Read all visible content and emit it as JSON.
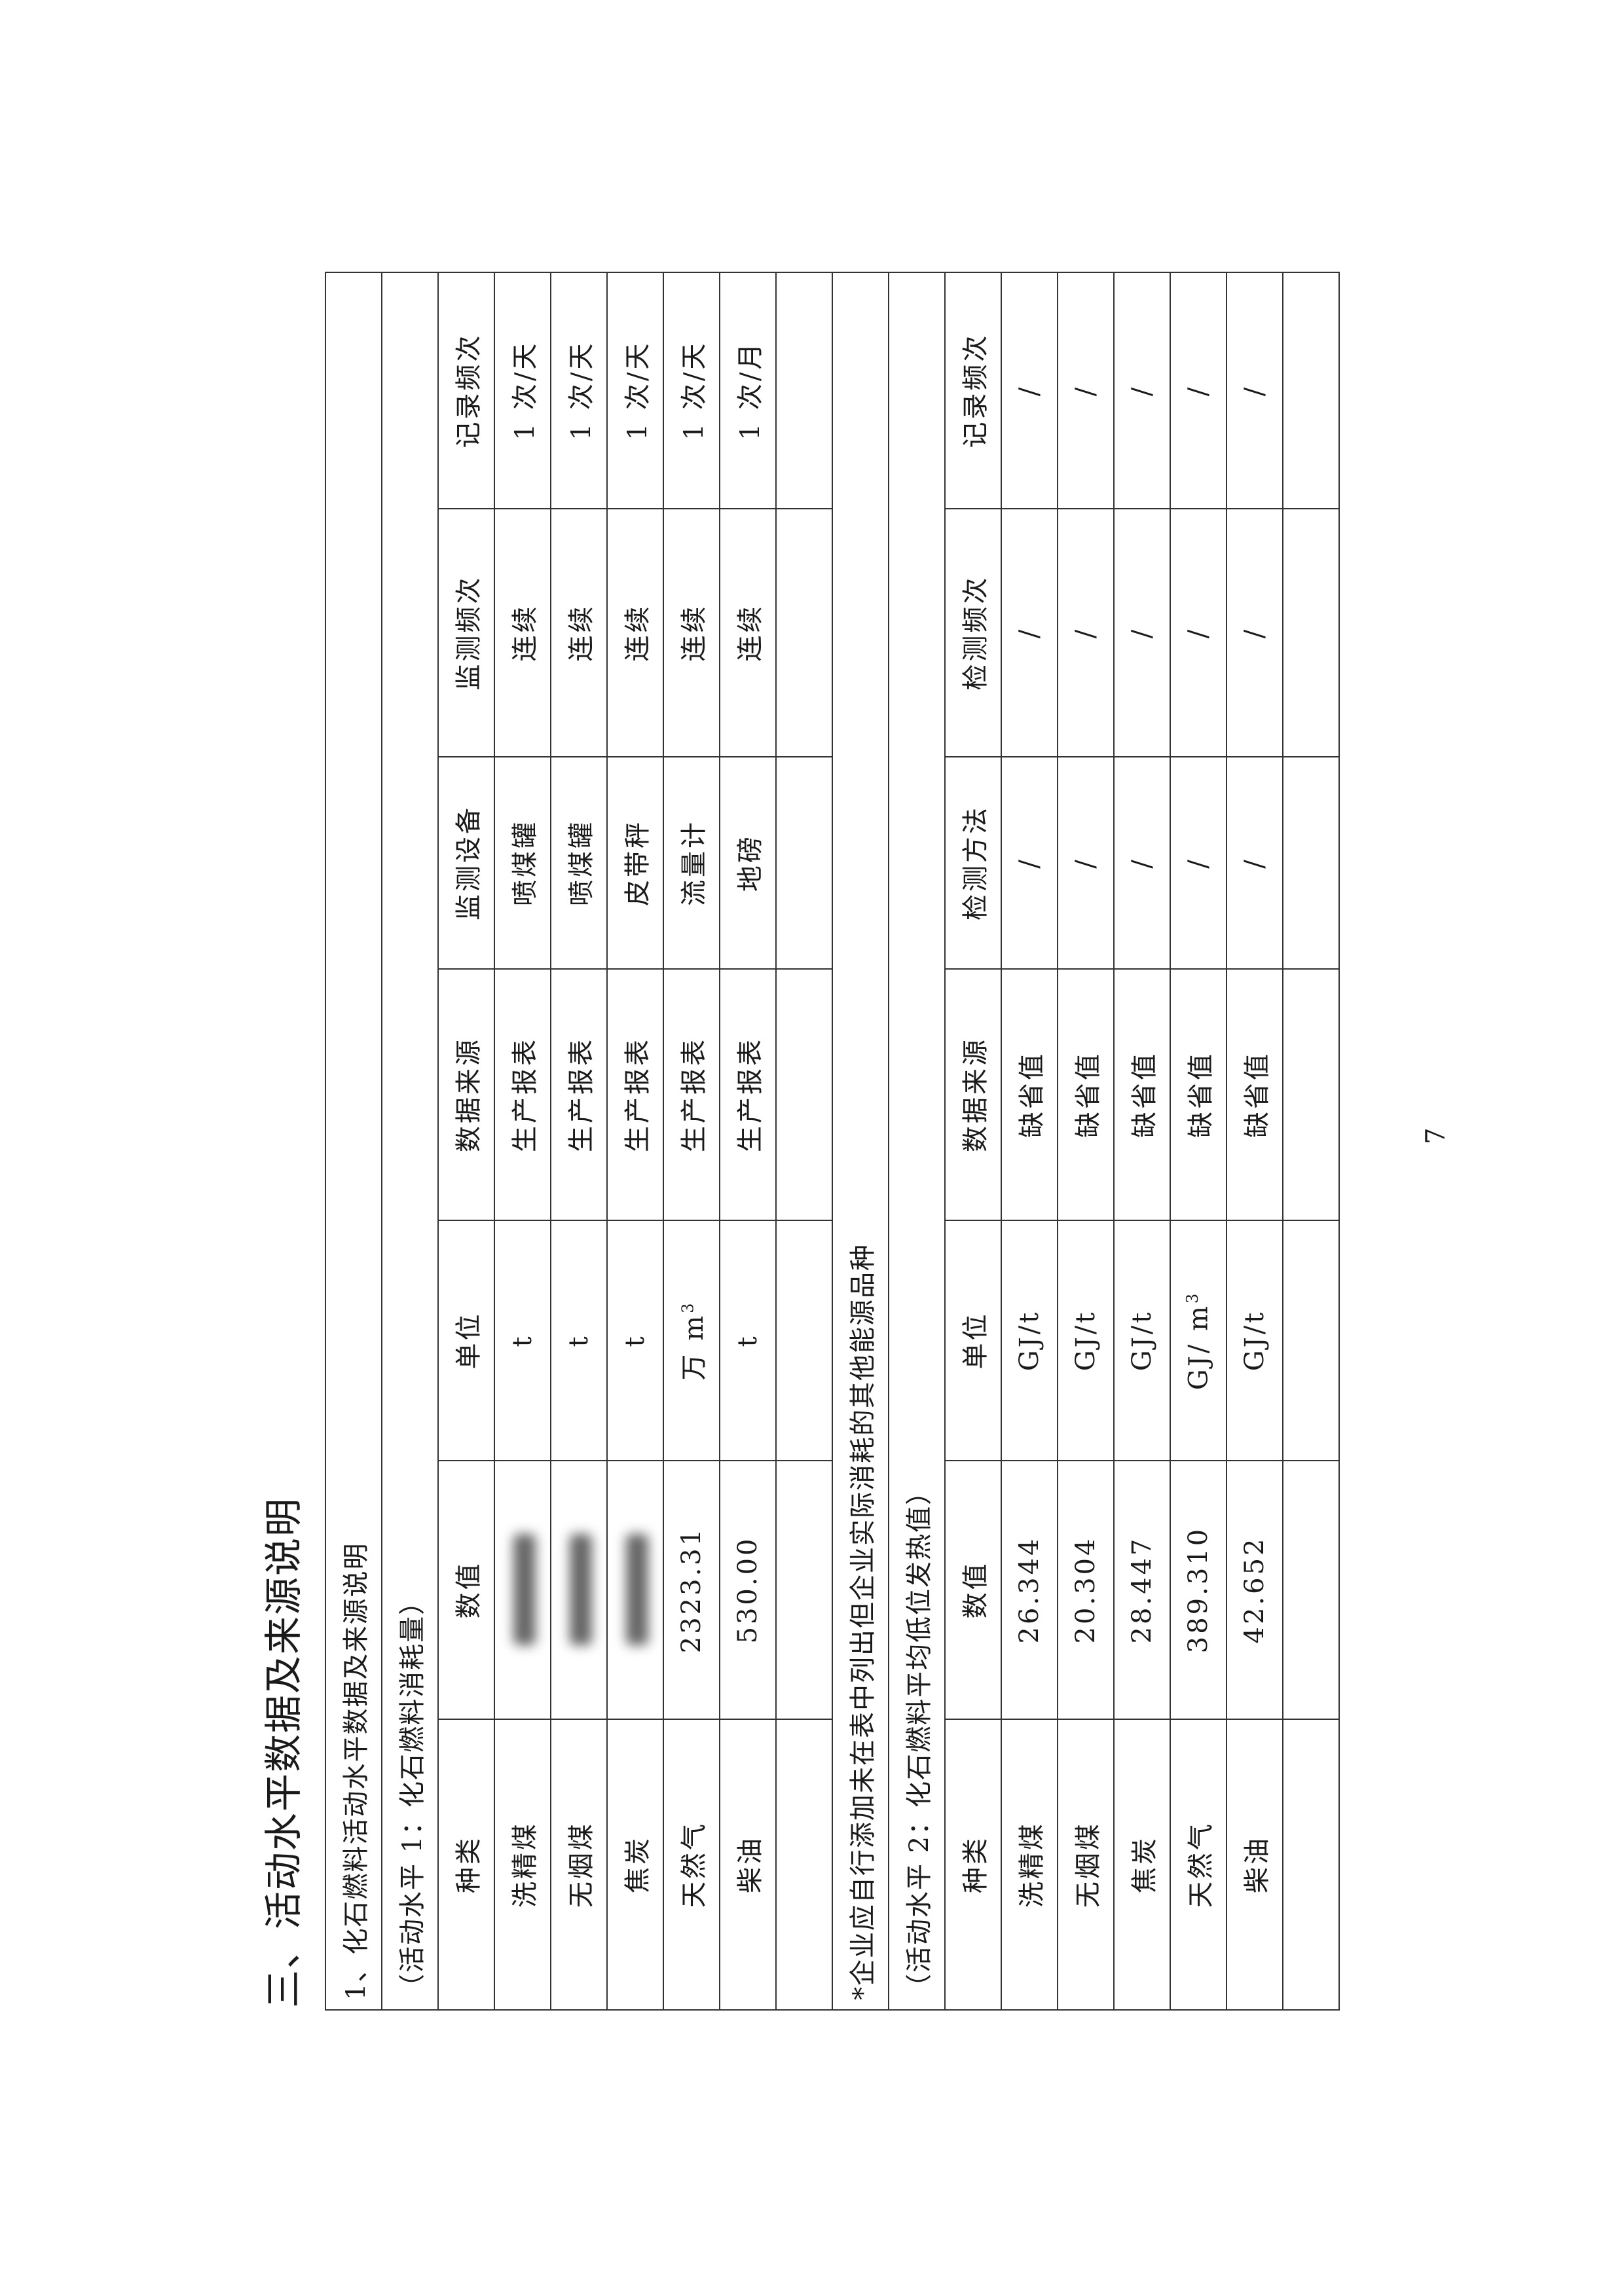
{
  "heading": "三、活动水平数据及来源说明",
  "section_title": "1、化石燃料活动水平数据及来源说明",
  "table1": {
    "caption": "（活动水平 1：化石燃料消耗量）",
    "headers": [
      "种类",
      "数值",
      "单位",
      "数据来源",
      "监测设备",
      "监测频次",
      "记录频次"
    ],
    "rows": [
      {
        "type": "洗精煤",
        "value": null,
        "value_redacted": true,
        "unit": "t",
        "source": "生产报表",
        "device": "喷煤罐",
        "monitor_freq": "连续",
        "record_freq": "1 次/天"
      },
      {
        "type": "无烟煤",
        "value": null,
        "value_redacted": true,
        "unit": "t",
        "source": "生产报表",
        "device": "喷煤罐",
        "monitor_freq": "连续",
        "record_freq": "1 次/天"
      },
      {
        "type": "焦炭",
        "value": null,
        "value_redacted": true,
        "unit": "t",
        "source": "生产报表",
        "device": "皮带秤",
        "monitor_freq": "连续",
        "record_freq": "1 次/天"
      },
      {
        "type": "天然气",
        "value": "2323.31",
        "unit": "万 m",
        "unit_sup": "3",
        "source": "生产报表",
        "device": "流量计",
        "monitor_freq": "连续",
        "record_freq": "1 次/天"
      },
      {
        "type": "柴油",
        "value": "530.00",
        "unit": "t",
        "source": "生产报表",
        "device": "地磅",
        "monitor_freq": "连续",
        "record_freq": "1 次/月"
      }
    ]
  },
  "footnote": "*企业应自行添加未在表中列出但企业实际消耗的其他能源品种",
  "table2": {
    "caption": "（活动水平 2：化石燃料平均低位发热值）",
    "headers": [
      "种类",
      "数值",
      "单位",
      "数据来源",
      "检测方法",
      "检测频次",
      "记录频次"
    ],
    "rows": [
      {
        "type": "洗精煤",
        "value": "26.344",
        "unit": "GJ/t",
        "source": "缺省值",
        "method": "/",
        "test_freq": "/",
        "record_freq": "/"
      },
      {
        "type": "无烟煤",
        "value": "20.304",
        "unit": "GJ/t",
        "source": "缺省值",
        "method": "/",
        "test_freq": "/",
        "record_freq": "/"
      },
      {
        "type": "焦炭",
        "value": "28.447",
        "unit": "GJ/t",
        "source": "缺省值",
        "method": "/",
        "test_freq": "/",
        "record_freq": "/"
      },
      {
        "type": "天然气",
        "value": "389.310",
        "unit": "GJ/ m",
        "unit_sup": "3",
        "source": "缺省值",
        "method": "/",
        "test_freq": "/",
        "record_freq": "/"
      },
      {
        "type": "柴油",
        "value": "42.652",
        "unit": "GJ/t",
        "source": "缺省值",
        "method": "/",
        "test_freq": "/",
        "record_freq": "/"
      }
    ]
  },
  "page_number": "7"
}
